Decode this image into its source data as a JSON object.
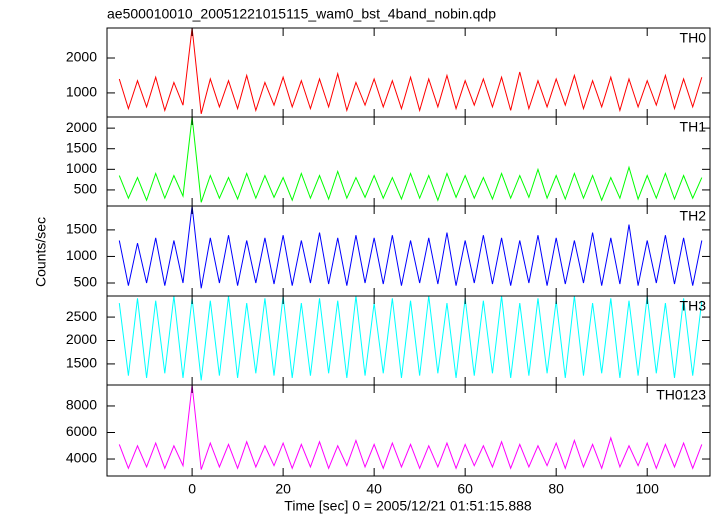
{
  "chart_data": [
    {
      "type": "line",
      "title": "ae500010010_20051221015115_wam0_bst_4band_nobin.qdp",
      "x": [
        -16,
        -14,
        -12,
        -10,
        -8,
        -6,
        -4,
        -2,
        0,
        2,
        4,
        6,
        8,
        10,
        12,
        14,
        16,
        18,
        20,
        22,
        24,
        26,
        28,
        30,
        32,
        34,
        36,
        38,
        40,
        42,
        44,
        46,
        48,
        50,
        52,
        54,
        56,
        58,
        60,
        62,
        64,
        66,
        68,
        70,
        72,
        74,
        76,
        78,
        80,
        82,
        84,
        86,
        88,
        90,
        92,
        94,
        96,
        98,
        100,
        102,
        104,
        106,
        108,
        110,
        112
      ],
      "series": [
        {
          "name": "TH0",
          "color": "#ff0000",
          "values": [
            1400,
            550,
            1350,
            600,
            1450,
            500,
            1300,
            650,
            2860,
            400,
            1400,
            600,
            1350,
            550,
            1500,
            500,
            1300,
            650,
            1450,
            600,
            1350,
            550,
            1400,
            600,
            1550,
            500,
            1300,
            650,
            1400,
            600,
            1350,
            550,
            1450,
            500,
            1400,
            600,
            1500,
            550,
            1350,
            650,
            1400,
            600,
            1450,
            500,
            1600,
            550,
            1350,
            600,
            1400,
            650,
            1500,
            550,
            1350,
            600,
            1450,
            500,
            1400,
            600,
            1350,
            650,
            1500,
            550,
            1400,
            600,
            1450
          ]
        }
      ],
      "xlim": [
        -18.7,
        113.8
      ],
      "xticks": [
        0,
        20,
        40,
        60,
        80,
        100
      ],
      "ylim": [
        310,
        2860
      ],
      "yticks": [
        1000,
        2000
      ]
    },
    {
      "type": "line",
      "x": [
        -16,
        -14,
        -12,
        -10,
        -8,
        -6,
        -4,
        -2,
        0,
        2,
        4,
        6,
        8,
        10,
        12,
        14,
        16,
        18,
        20,
        22,
        24,
        26,
        28,
        30,
        32,
        34,
        36,
        38,
        40,
        42,
        44,
        46,
        48,
        50,
        52,
        54,
        56,
        58,
        60,
        62,
        64,
        66,
        68,
        70,
        72,
        74,
        76,
        78,
        80,
        82,
        84,
        86,
        88,
        90,
        92,
        94,
        96,
        98,
        100,
        102,
        104,
        106,
        108,
        110,
        112
      ],
      "series": [
        {
          "name": "TH1",
          "color": "#00ff00",
          "values": [
            850,
            300,
            800,
            250,
            900,
            300,
            850,
            350,
            2270,
            200,
            850,
            300,
            800,
            280,
            900,
            300,
            850,
            320,
            800,
            250,
            900,
            300,
            850,
            280,
            950,
            300,
            800,
            320,
            850,
            300,
            800,
            280,
            900,
            300,
            850,
            250,
            900,
            320,
            850,
            300,
            800,
            280,
            900,
            300,
            850,
            320,
            1000,
            300,
            850,
            280,
            900,
            300,
            850,
            250,
            800,
            300,
            1050,
            280,
            850,
            300,
            900,
            280,
            850,
            300,
            800
          ]
        }
      ],
      "xlim": [
        -18.7,
        113.8
      ],
      "xticks": [
        0,
        20,
        40,
        60,
        80,
        100
      ],
      "ylim": [
        110,
        2270
      ],
      "yticks": [
        500,
        1000,
        1500,
        2000
      ]
    },
    {
      "type": "line",
      "y_label": "Counts/sec",
      "x": [
        -16,
        -14,
        -12,
        -10,
        -8,
        -6,
        -4,
        -2,
        0,
        2,
        4,
        6,
        8,
        10,
        12,
        14,
        16,
        18,
        20,
        22,
        24,
        26,
        28,
        30,
        32,
        34,
        36,
        38,
        40,
        42,
        44,
        46,
        48,
        50,
        52,
        54,
        56,
        58,
        60,
        62,
        64,
        66,
        68,
        70,
        72,
        74,
        76,
        78,
        80,
        82,
        84,
        86,
        88,
        90,
        92,
        94,
        96,
        98,
        100,
        102,
        104,
        106,
        108,
        110,
        112
      ],
      "series": [
        {
          "name": "TH2",
          "color": "#0000ff",
          "values": [
            1300,
            450,
            1250,
            500,
            1350,
            450,
            1300,
            500,
            1950,
            400,
            1350,
            500,
            1400,
            450,
            1300,
            500,
            1350,
            480,
            1400,
            450,
            1300,
            500,
            1450,
            480,
            1350,
            450,
            1400,
            500,
            1350,
            480,
            1400,
            450,
            1300,
            500,
            1350,
            480,
            1450,
            450,
            1300,
            500,
            1400,
            480,
            1350,
            450,
            1300,
            500,
            1400,
            450,
            1350,
            480,
            1300,
            500,
            1450,
            450,
            1350,
            480,
            1600,
            450,
            1300,
            500,
            1400,
            480,
            1350,
            450,
            1300
          ]
        }
      ],
      "xlim": [
        -18.7,
        113.8
      ],
      "xticks": [
        0,
        20,
        40,
        60,
        80,
        100
      ],
      "ylim": [
        255,
        1950
      ],
      "yticks": [
        500,
        1000,
        1500
      ]
    },
    {
      "type": "line",
      "x": [
        -16,
        -14,
        -12,
        -10,
        -8,
        -6,
        -4,
        -2,
        0,
        2,
        4,
        6,
        8,
        10,
        12,
        14,
        16,
        18,
        20,
        22,
        24,
        26,
        28,
        30,
        32,
        34,
        36,
        38,
        40,
        42,
        44,
        46,
        48,
        50,
        52,
        54,
        56,
        58,
        60,
        62,
        64,
        66,
        68,
        70,
        72,
        74,
        76,
        78,
        80,
        82,
        84,
        86,
        88,
        90,
        92,
        94,
        96,
        98,
        100,
        102,
        104,
        106,
        108,
        110,
        112
      ],
      "series": [
        {
          "name": "TH3",
          "color": "#00ffff",
          "values": [
            2800,
            1250,
            2900,
            1200,
            2850,
            1300,
            2950,
            1200,
            2900,
            1150,
            2850,
            1250,
            2950,
            1200,
            2800,
            1300,
            2900,
            1250,
            2950,
            1200,
            2800,
            1250,
            2900,
            1300,
            2850,
            1200,
            2950,
            1250,
            2800,
            1300,
            2900,
            1200,
            2850,
            1250,
            2950,
            1300,
            2800,
            1200,
            2900,
            1250,
            2850,
            1300,
            2950,
            1200,
            2800,
            1250,
            2900,
            1300,
            2850,
            1200,
            2950,
            1250,
            2800,
            1300,
            2900,
            1200,
            2850,
            1250,
            2950,
            1300,
            2800,
            1200,
            2900,
            1250,
            2850
          ]
        }
      ],
      "xlim": [
        -18.7,
        113.8
      ],
      "xticks": [
        0,
        20,
        40,
        60,
        80,
        100
      ],
      "ylim": [
        1050,
        2950
      ],
      "yticks": [
        1500,
        2000,
        2500
      ]
    },
    {
      "type": "line",
      "x_label": "Time [sec] 0 = 2005/12/21 01:51:15.888",
      "x": [
        -16,
        -14,
        -12,
        -10,
        -8,
        -6,
        -4,
        -2,
        0,
        2,
        4,
        6,
        8,
        10,
        12,
        14,
        16,
        18,
        20,
        22,
        24,
        26,
        28,
        30,
        32,
        34,
        36,
        38,
        40,
        42,
        44,
        46,
        48,
        50,
        52,
        54,
        56,
        58,
        60,
        62,
        64,
        66,
        68,
        70,
        72,
        74,
        76,
        78,
        80,
        82,
        84,
        86,
        88,
        90,
        92,
        94,
        96,
        98,
        100,
        102,
        104,
        106,
        108,
        110,
        112
      ],
      "series": [
        {
          "name": "TH0123",
          "color": "#ff00ff",
          "values": [
            5100,
            3300,
            5000,
            3400,
            5200,
            3300,
            5000,
            3500,
            9580,
            3200,
            5200,
            3400,
            5100,
            3300,
            5300,
            3400,
            5000,
            3500,
            5200,
            3300,
            5100,
            3400,
            5300,
            3300,
            5000,
            3500,
            5400,
            3400,
            5100,
            3300,
            5200,
            3400,
            5100,
            3300,
            5000,
            3400,
            5200,
            3300,
            5100,
            3500,
            5000,
            3400,
            5300,
            3300,
            5100,
            3400,
            5000,
            3500,
            5200,
            3300,
            5400,
            3400,
            5100,
            3300,
            5600,
            3400,
            5000,
            3500,
            5200,
            3300,
            5100,
            3400,
            5200,
            3300,
            5100
          ]
        }
      ],
      "xlim": [
        -18.7,
        113.8
      ],
      "xticks": [
        0,
        20,
        40,
        60,
        80,
        100
      ],
      "ylim": [
        2720,
        9580
      ],
      "yticks": [
        4000,
        6000,
        8000
      ]
    }
  ]
}
